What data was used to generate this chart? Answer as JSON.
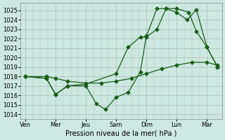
{
  "xlabel": "Pression niveau de la mer( hPa )",
  "background_color": "#cce8e0",
  "grid_color": "#999999",
  "line_color": "#1a5c1a",
  "ylim": [
    1013.5,
    1025.8
  ],
  "ytick_min": 1014,
  "ytick_max": 1025,
  "ytick_step": 1,
  "x_labels": [
    "Ven",
    "Mer",
    "Jeu",
    "Sam",
    "Dim",
    "Lun",
    "Mar"
  ],
  "x_positions": [
    0,
    1,
    2,
    3,
    4,
    5,
    6
  ],
  "xlim": [
    -0.15,
    6.5
  ],
  "series": [
    {
      "x": [
        0.0,
        0.7,
        1.0,
        1.4,
        2.0,
        2.35,
        2.65,
        3.0,
        3.4,
        3.8,
        4.0,
        4.35,
        4.65,
        5.0,
        5.4,
        5.65,
        6.0,
        6.35
      ],
      "y": [
        1018.0,
        1017.8,
        1016.1,
        1017.0,
        1017.0,
        1015.1,
        1014.5,
        1015.8,
        1016.3,
        1018.5,
        1022.3,
        1025.2,
        1025.2,
        1025.2,
        1024.8,
        1022.8,
        1021.1,
        1019.0
      ],
      "marker": "D",
      "markersize": 2.5
    },
    {
      "x": [
        0.0,
        0.7,
        1.0,
        1.4,
        2.0,
        3.0,
        3.4,
        3.8,
        4.0,
        4.35,
        4.65,
        5.0,
        5.35,
        5.65,
        6.0,
        6.35
      ],
      "y": [
        1018.0,
        1017.8,
        1016.1,
        1017.0,
        1017.2,
        1018.3,
        1021.1,
        1022.2,
        1022.2,
        1023.0,
        1025.2,
        1024.8,
        1024.0,
        1025.1,
        1021.1,
        1019.0
      ],
      "marker": "D",
      "markersize": 2.5
    },
    {
      "x": [
        0.0,
        0.7,
        1.0,
        1.4,
        2.0,
        2.5,
        3.0,
        3.5,
        4.0,
        4.5,
        5.0,
        5.5,
        6.0,
        6.35
      ],
      "y": [
        1018.0,
        1018.0,
        1017.8,
        1017.5,
        1017.3,
        1017.3,
        1017.5,
        1017.8,
        1018.3,
        1018.8,
        1019.2,
        1019.5,
        1019.5,
        1019.2
      ],
      "marker": "D",
      "markersize": 2.5
    }
  ]
}
